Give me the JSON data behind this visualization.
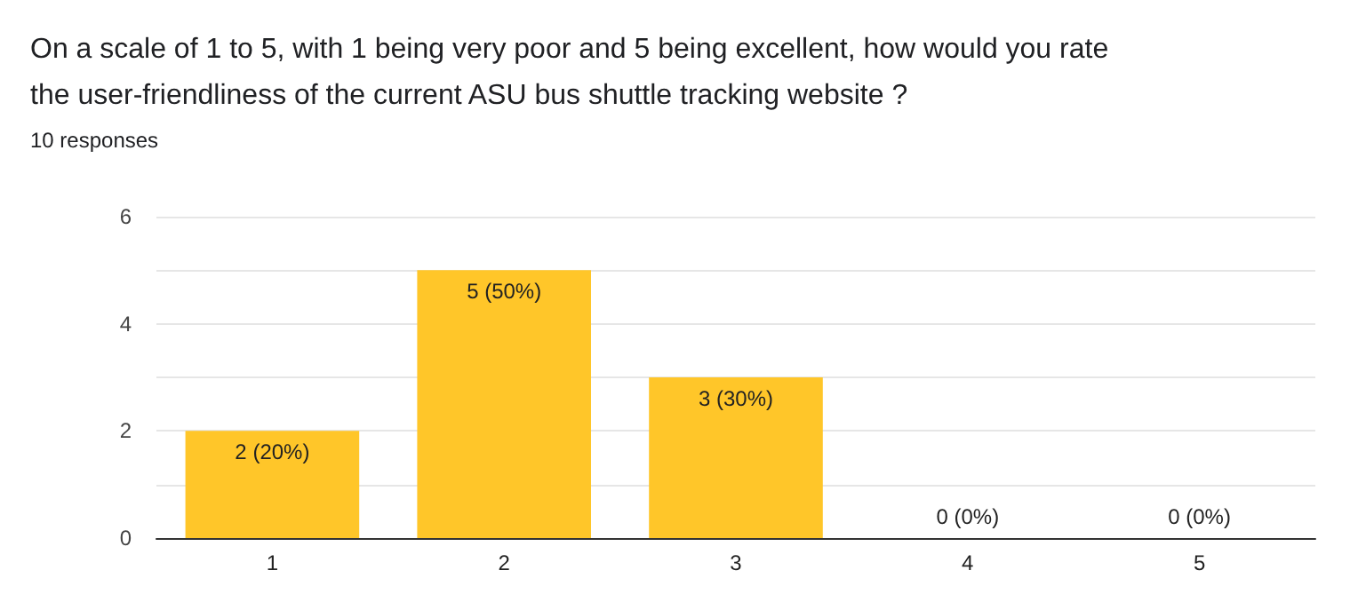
{
  "chart_data": {
    "type": "bar",
    "title": "On a scale of 1 to 5, with 1 being very poor and 5 being excellent, how would you rate\nthe user-friendliness of the current ASU bus shuttle tracking website ?",
    "subtitle": "10 responses",
    "categories": [
      "1",
      "2",
      "3",
      "4",
      "5"
    ],
    "values": [
      2,
      5,
      3,
      0,
      0
    ],
    "value_labels": [
      "2 (20%)",
      "5 (50%)",
      "3 (30%)",
      "0 (0%)",
      "0 (0%)"
    ],
    "color": "#ffc629",
    "ylim": [
      0,
      6
    ],
    "yticks": [
      0,
      {
        "value": 1,
        "label": null
      },
      2,
      {
        "value": 3,
        "label": null
      },
      4,
      {
        "value": 5,
        "label": null
      },
      6
    ],
    "grid": "y"
  }
}
